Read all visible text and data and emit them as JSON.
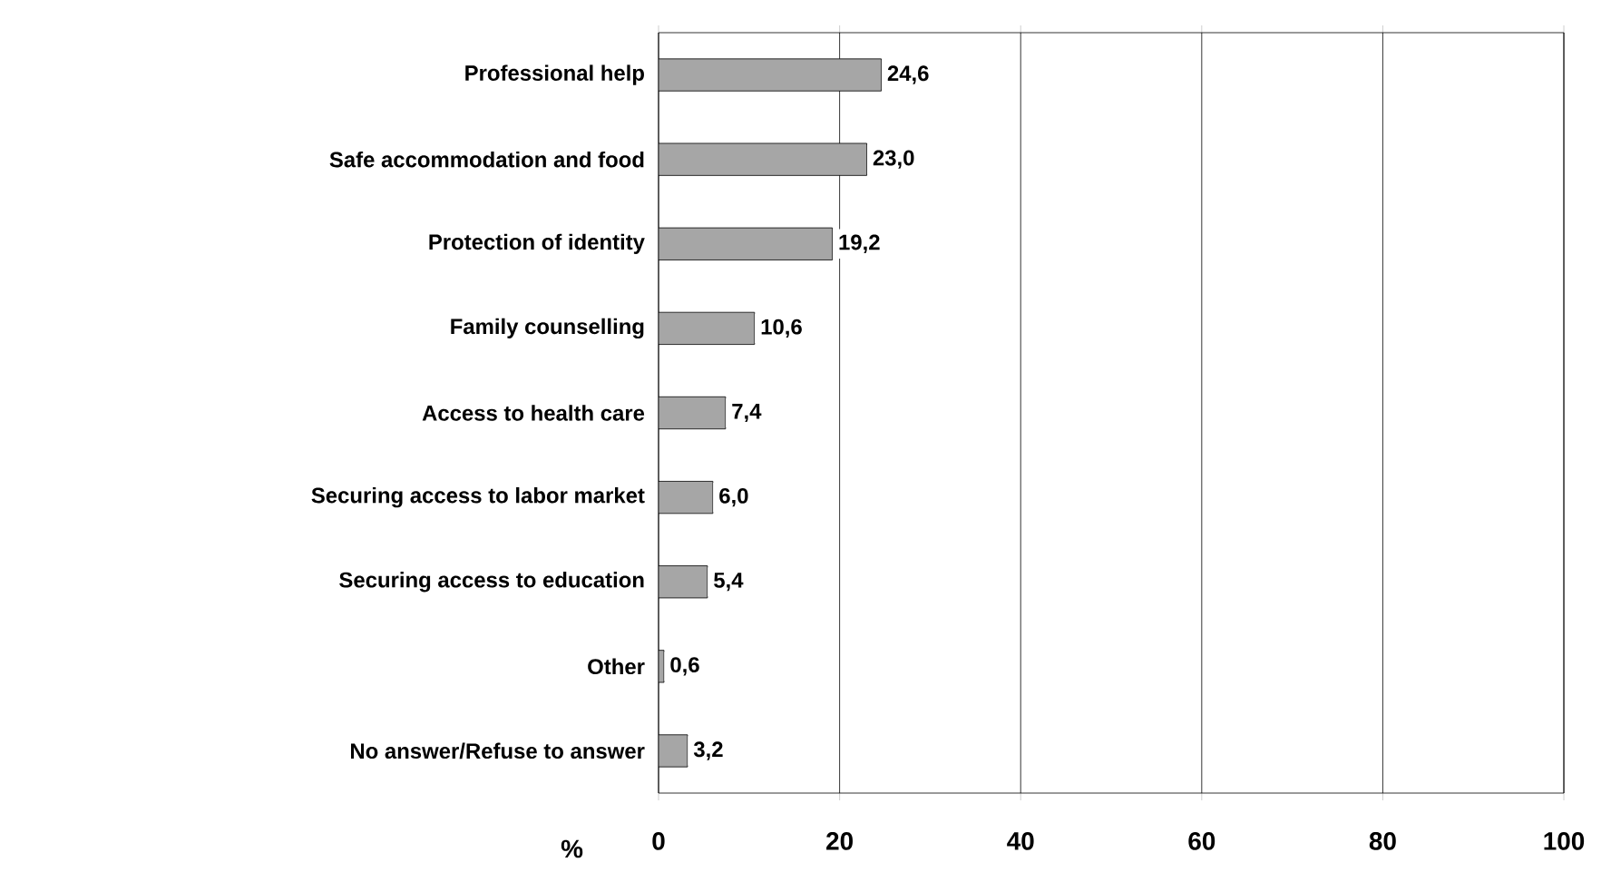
{
  "chart_data": {
    "type": "bar",
    "orientation": "horizontal",
    "xlabel": "%",
    "categories": [
      "Professional help",
      "Safe accommodation and food",
      "Protection of identity",
      "Family counselling",
      "Access to health care",
      "Securing access to labor market",
      "Securing access to education",
      "Other",
      "No answer/Refuse to answer"
    ],
    "values": [
      24.6,
      23.0,
      19.2,
      10.6,
      7.4,
      6.0,
      5.4,
      0.6,
      3.2
    ],
    "value_labels": [
      "24,6",
      "23,0",
      "19,2",
      "10,6",
      "7,4",
      "6,0",
      "5,4",
      "0,6",
      "3,2"
    ],
    "color": "#a6a6a6",
    "xlim": [
      0,
      100
    ],
    "xticks": [
      0,
      20,
      40,
      60,
      80,
      100
    ],
    "grid": "x"
  }
}
